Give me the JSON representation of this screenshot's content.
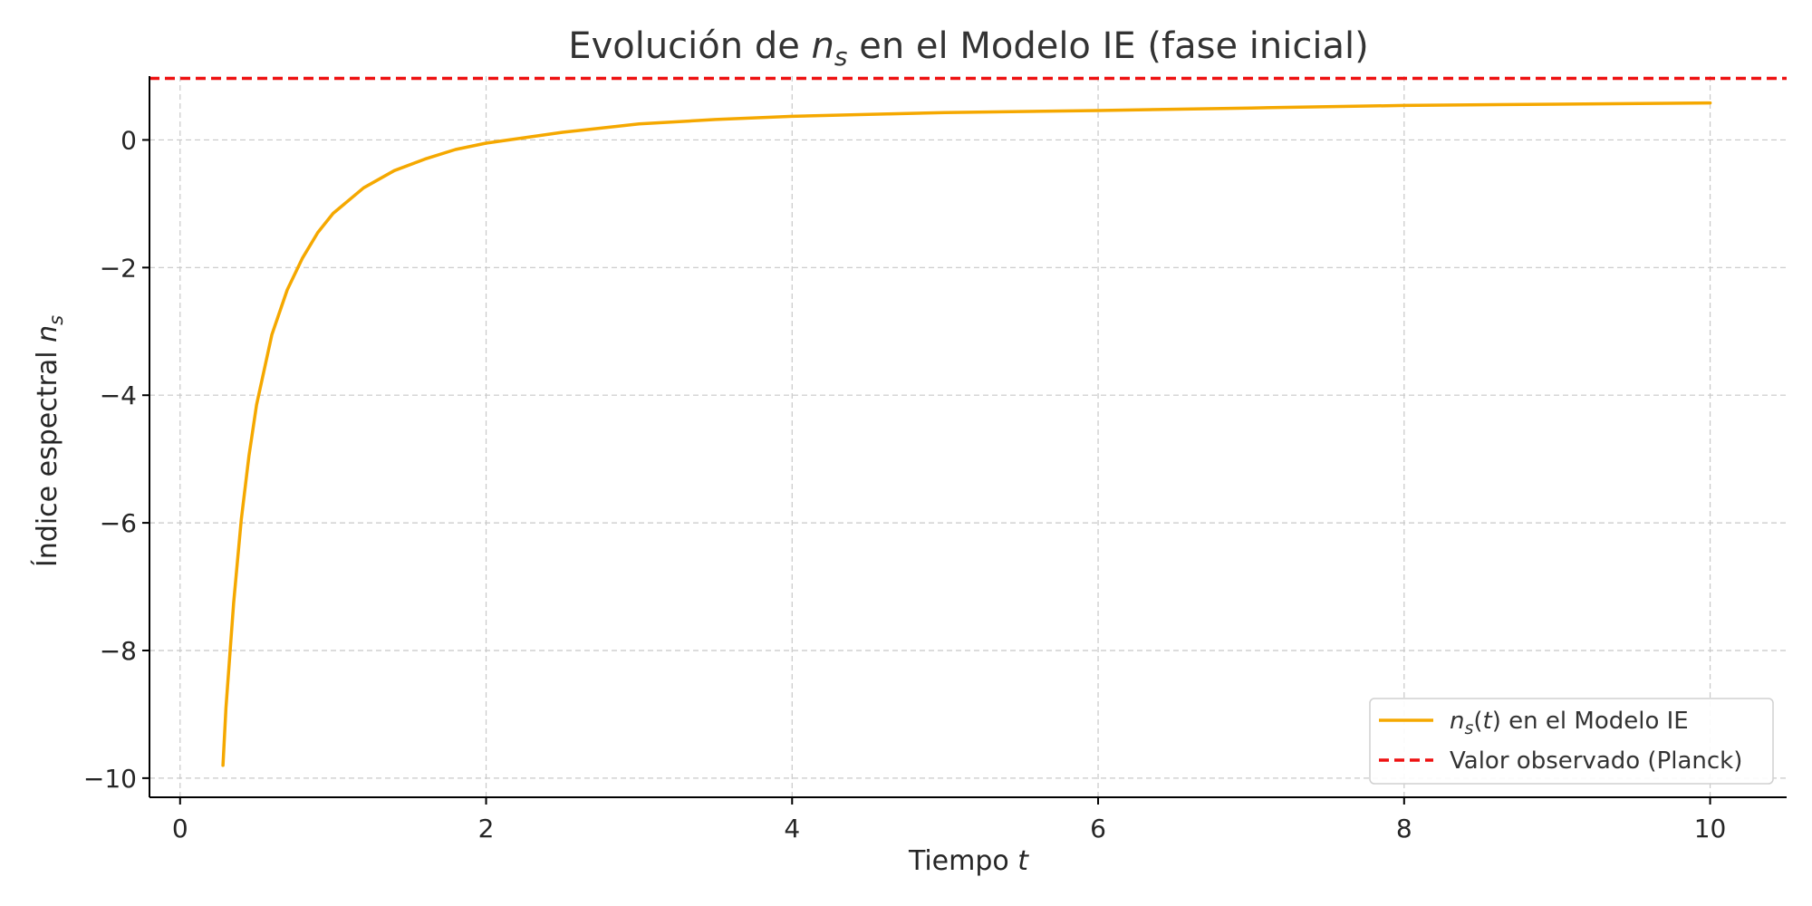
{
  "chart_data": {
    "type": "line",
    "title": {
      "pre": "Evolución de ",
      "var": "n",
      "sub": "s",
      "post": " en el Modelo IE (fase inicial)"
    },
    "xlabel": {
      "pre": "Tiempo ",
      "var": "t"
    },
    "ylabel": {
      "pre": "Índice espectral ",
      "var": "n",
      "sub": "s"
    },
    "xlim": [
      -0.2,
      10.5
    ],
    "ylim": [
      -10.3,
      1.0
    ],
    "x_ticks": [
      0,
      2,
      4,
      6,
      8,
      10
    ],
    "x_tick_labels": [
      "0",
      "2",
      "4",
      "6",
      "8",
      "10"
    ],
    "y_ticks": [
      0,
      -2,
      -4,
      -6,
      -8,
      -10
    ],
    "y_tick_labels": [
      "0",
      "−2",
      "−4",
      "−6",
      "−8",
      "−10"
    ],
    "grid": true,
    "legend_position": "lower-right",
    "series": [
      {
        "name": "n_s(t) en el Modelo IE",
        "legend": {
          "var": "n",
          "sub": "s",
          "mid": "(",
          "var2": "t",
          "post": ") en el Modelo IE"
        },
        "color": "#f5a800",
        "style": "solid",
        "x": [
          0.28,
          0.3,
          0.35,
          0.4,
          0.45,
          0.5,
          0.6,
          0.7,
          0.8,
          0.9,
          1.0,
          1.2,
          1.4,
          1.6,
          1.8,
          2.0,
          2.5,
          3.0,
          3.5,
          4.0,
          4.5,
          5.0,
          6.0,
          7.0,
          8.0,
          9.0,
          10.0
        ],
        "y": [
          -9.8,
          -8.9,
          -7.25,
          -5.95,
          -4.95,
          -4.15,
          -3.05,
          -2.35,
          -1.85,
          -1.45,
          -1.15,
          -0.75,
          -0.48,
          -0.3,
          -0.15,
          -0.05,
          0.12,
          0.25,
          0.32,
          0.37,
          0.4,
          0.43,
          0.46,
          0.5,
          0.54,
          0.56,
          0.58
        ]
      },
      {
        "name": "Valor observado (Planck)",
        "legend": {
          "post": "Valor observado (Planck)"
        },
        "color": "#ee1111",
        "style": "dashed",
        "constant_y": 0.965
      }
    ]
  }
}
